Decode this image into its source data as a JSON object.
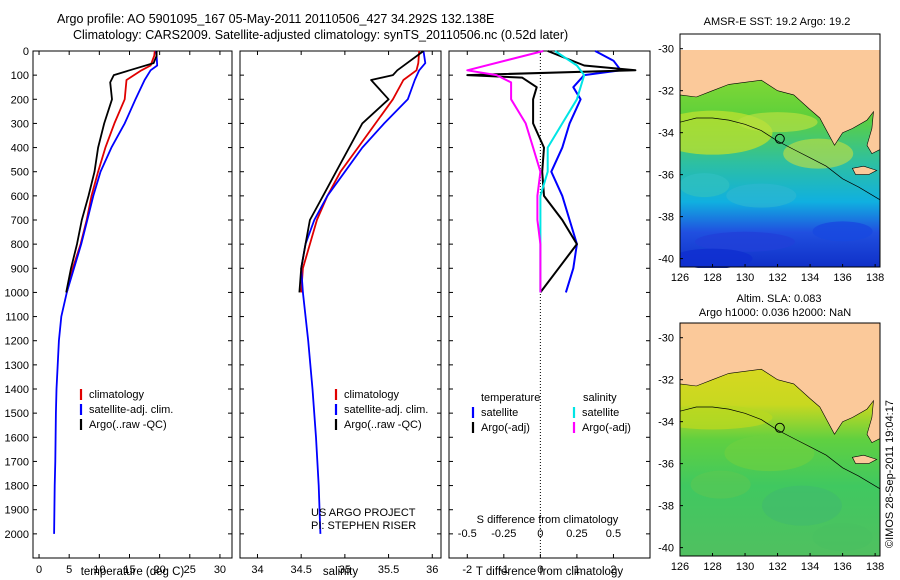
{
  "title_line1": "Argo profile: AO 5901095_167 05-May-2011 20110506_427 34.292S 132.138E",
  "title_line2": "Climatology: CARS2009. Satellite-adjusted climatology: synTS_20110506.nc (0.52d later)",
  "colors": {
    "climatology": "#e00000",
    "satellite": "#0000ff",
    "argo": "#000000",
    "salinity_sat": "#00e5e5",
    "salinity_argo": "#ff00ff",
    "land": "#fbc99a"
  },
  "chart_data": [
    {
      "id": "temperature",
      "type": "line",
      "xlabel": "temperature (deg C)",
      "ylabel": "",
      "xlim": [
        -1,
        32
      ],
      "ylim": [
        2100,
        0
      ],
      "x_ticks": [
        0,
        5,
        10,
        15,
        20,
        25,
        30
      ],
      "y_ticks": [
        0,
        100,
        200,
        300,
        400,
        500,
        600,
        700,
        800,
        900,
        1000,
        1100,
        1200,
        1300,
        1400,
        1500,
        1600,
        1700,
        1800,
        1900,
        2000
      ],
      "legend": [
        "climatology",
        "satellite-adj. clim.",
        "Argo(..raw -QC)"
      ],
      "series": [
        {
          "name": "climatology",
          "depth": [
            0,
            20,
            60,
            80,
            120,
            200,
            300,
            400,
            500,
            600,
            700,
            800,
            900,
            1000
          ],
          "values": [
            19.2,
            19.1,
            18.5,
            17,
            14.5,
            14.2,
            12.5,
            11,
            9.8,
            8.7,
            7.9,
            6.9,
            5.6,
            4.6
          ]
        },
        {
          "name": "satellite-adj. clim.",
          "depth": [
            0,
            20,
            60,
            80,
            120,
            200,
            300,
            400,
            500,
            600,
            700,
            800,
            900,
            1000,
            1100,
            1200,
            1300,
            1400,
            1500,
            1600,
            1700,
            1800,
            1900,
            2000
          ],
          "values": [
            19.4,
            19.5,
            19.6,
            18.5,
            17.5,
            16,
            14.2,
            12,
            10.2,
            9,
            8,
            7,
            5.8,
            4.6,
            3.7,
            3.3,
            3.1,
            2.9,
            2.8,
            2.75,
            2.7,
            2.6,
            2.55,
            2.5
          ]
        },
        {
          "name": "Argo(..raw -QC)",
          "depth": [
            0,
            20,
            50,
            80,
            100,
            130,
            200,
            300,
            400,
            500,
            600,
            700,
            800,
            900,
            1000
          ],
          "values": [
            19.5,
            19.5,
            19,
            15,
            12.4,
            11.8,
            12.1,
            10.8,
            9.8,
            9.2,
            8.2,
            7.1,
            6.3,
            5.3,
            4.5
          ]
        }
      ]
    },
    {
      "id": "salinity",
      "type": "line",
      "xlabel": "salinity",
      "ylabel": "",
      "xlim": [
        33.8,
        36.1
      ],
      "ylim": [
        2100,
        0
      ],
      "x_ticks": [
        34,
        34.5,
        35,
        35.5,
        36
      ],
      "x_tick_labels": [
        "34",
        "34.5",
        "35",
        "35.5",
        "36"
      ],
      "legend": [
        "climatology",
        "satellite-adj. clim.",
        "Argo(..raw -QC)"
      ],
      "annotation": [
        "US ARGO PROJECT",
        "PI: STEPHEN RISER"
      ],
      "series": [
        {
          "name": "climatology",
          "depth": [
            0,
            50,
            80,
            120,
            200,
            300,
            400,
            500,
            600,
            700,
            800,
            900,
            1000
          ],
          "values": [
            35.85,
            35.84,
            35.82,
            35.67,
            35.55,
            35.35,
            35.15,
            34.95,
            34.8,
            34.68,
            34.6,
            34.52,
            34.5
          ]
        },
        {
          "name": "satellite-adj. clim.",
          "depth": [
            0,
            50,
            80,
            120,
            200,
            300,
            400,
            500,
            600,
            700,
            800,
            900,
            1000,
            1200,
            1400,
            1600,
            1800,
            2000
          ],
          "values": [
            35.9,
            35.92,
            35.85,
            35.8,
            35.72,
            35.45,
            35.2,
            35,
            34.8,
            34.65,
            34.55,
            34.5,
            34.52,
            34.58,
            34.63,
            34.67,
            34.7,
            34.72
          ]
        },
        {
          "name": "Argo(..raw -QC)",
          "depth": [
            0,
            80,
            100,
            120,
            200,
            300,
            400,
            500,
            600,
            700,
            800,
            900,
            1000
          ],
          "values": [
            35.9,
            35.6,
            35.55,
            35.3,
            35.5,
            35.2,
            35.05,
            34.9,
            34.75,
            34.6,
            34.55,
            34.5,
            34.48
          ]
        }
      ]
    },
    {
      "id": "difference",
      "type": "line",
      "xlabel": "T difference from climatology",
      "xlabel_top": "S difference from climatology",
      "ylabel": "",
      "xlim": [
        -2.5,
        3
      ],
      "ylim": [
        2100,
        0
      ],
      "x_ticks": [
        -2,
        -1,
        0,
        1,
        2
      ],
      "x_tick_labels": [
        "-2",
        "-1",
        "0",
        "1",
        "2"
      ],
      "x_ticks_top": [
        -0.5,
        -0.25,
        0,
        0.25,
        0.5
      ],
      "x_tick_labels_top": [
        "-0.5",
        "-0.25",
        "0",
        "0.25",
        "0.5"
      ],
      "legend_temperature_title": "temperature",
      "legend_salinity_title": "salinity",
      "legend_temperature": [
        "satellite",
        "Argo(-adj)"
      ],
      "legend_salinity": [
        "satellite",
        "Argo(-adj)"
      ],
      "series": [
        {
          "name": "satellite",
          "kind": "T",
          "depth": [
            0,
            40,
            80,
            100,
            150,
            200,
            300,
            400,
            500,
            600,
            700,
            800,
            900,
            1000
          ],
          "values": [
            1.5,
            2,
            2.2,
            1.2,
            0.9,
            1.1,
            0.8,
            0.6,
            0.3,
            0.6,
            0.8,
            1,
            0.9,
            0.7
          ]
        },
        {
          "name": "Argo(-adj)",
          "kind": "T",
          "depth": [
            0,
            60,
            80,
            100,
            110,
            150,
            200,
            300,
            400,
            500,
            600,
            700,
            800,
            900,
            1000
          ],
          "values": [
            0.2,
            1.2,
            2.6,
            -2,
            -0.5,
            -0.1,
            -0.2,
            -0.2,
            0.1,
            0.05,
            0.1,
            0.6,
            1,
            0.5,
            0
          ]
        },
        {
          "name": "satellite",
          "kind": "S",
          "depth": [
            0,
            60,
            100,
            200,
            300,
            400,
            500,
            600,
            700,
            800,
            900,
            1000
          ],
          "values": [
            0.1,
            0.25,
            0.3,
            0.25,
            0.15,
            0.05,
            0.05,
            0,
            0,
            0,
            0,
            0
          ]
        },
        {
          "name": "Argo(-adj)",
          "kind": "S",
          "depth": [
            0,
            80,
            100,
            130,
            200,
            300,
            400,
            500,
            600,
            700,
            800,
            900,
            1000
          ],
          "values": [
            0.02,
            -0.5,
            -0.3,
            -0.2,
            -0.2,
            -0.1,
            -0.05,
            0,
            -0.02,
            -0.02,
            0,
            0,
            0
          ]
        }
      ]
    },
    {
      "id": "sst_map",
      "type": "heatmap",
      "title": "AMSR-E SST: 19.2 Argo: 19.2",
      "xlim": [
        126,
        138.3
      ],
      "ylim": [
        -40.4,
        -29.3
      ],
      "x_ticks": [
        126,
        128,
        130,
        132,
        134,
        136,
        138
      ],
      "y_ticks": [
        -30,
        -32,
        -34,
        -36,
        -38,
        -40
      ],
      "marker": {
        "lon": 132.138,
        "lat": -34.292
      }
    },
    {
      "id": "sla_map",
      "type": "heatmap",
      "title_line1": "Altim. SLA: 0.083",
      "title_line2": "Argo h1000: 0.036 h2000: NaN",
      "xlim": [
        126,
        138.3
      ],
      "ylim": [
        -40.4,
        -29.3
      ],
      "x_ticks": [
        126,
        128,
        130,
        132,
        134,
        136,
        138
      ],
      "y_ticks": [
        -30,
        -32,
        -34,
        -36,
        -38,
        -40
      ],
      "marker": {
        "lon": 132.138,
        "lat": -34.292
      }
    }
  ],
  "imos_stamp": "©IMOS 28-Sep-2011 19:04:17"
}
